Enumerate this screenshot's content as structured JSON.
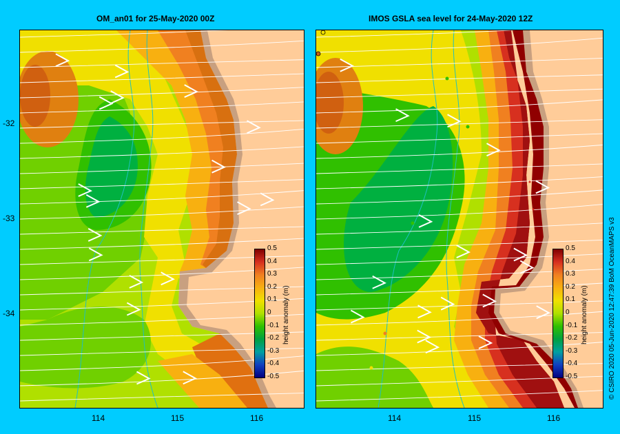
{
  "left_panel": {
    "title": "OM_an01  for 25-May-2020 00Z"
  },
  "right_panel": {
    "title": "IMOS GSLA sea level  for 24-May-2020 12Z"
  },
  "y_ticks": [
    "-32",
    "-33",
    "-34"
  ],
  "x_ticks": [
    "114",
    "115",
    "116"
  ],
  "colorbar": {
    "label": "height anomaly (m)",
    "ticks": [
      "0.5",
      "0.4",
      "0.3",
      "0.2",
      "0.1",
      "0",
      "-0.1",
      "-0.2",
      "-0.3",
      "-0.4",
      "-0.5"
    ],
    "colors": [
      "#800000",
      "#d7301f",
      "#f08020",
      "#f8b010",
      "#f0e000",
      "#b0e000",
      "#30c000",
      "#00a040",
      "#00a0a0",
      "#1040c0",
      "#000080"
    ]
  },
  "credit": "© CSIRO 2020   05-Jun-2020 12:47:39 BoM OceanMAPS v3",
  "colors": {
    "background": "#00ccff",
    "land": "#ffcc99",
    "coast_shallow": "#c8a080"
  }
}
